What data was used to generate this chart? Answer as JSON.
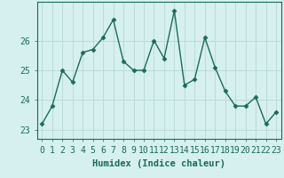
{
  "x": [
    0,
    1,
    2,
    3,
    4,
    5,
    6,
    7,
    8,
    9,
    10,
    11,
    12,
    13,
    14,
    15,
    16,
    17,
    18,
    19,
    20,
    21,
    22,
    23
  ],
  "y": [
    23.2,
    23.8,
    25.0,
    24.6,
    25.6,
    25.7,
    26.1,
    26.7,
    25.3,
    25.0,
    25.0,
    26.0,
    25.4,
    27.0,
    24.5,
    24.7,
    26.1,
    25.1,
    24.3,
    23.8,
    23.8,
    24.1,
    23.2,
    23.6
  ],
  "line_color": "#1a6b5a",
  "marker": "D",
  "markersize": 2.5,
  "bg_color": "#d6f0ef",
  "grid_color": "#b8d8d8",
  "xlabel": "Humidex (Indice chaleur)",
  "ylabel": "",
  "ylim": [
    22.7,
    27.3
  ],
  "yticks": [
    23,
    24,
    25,
    26
  ],
  "xlim": [
    -0.5,
    23.5
  ],
  "title": "",
  "xlabel_fontsize": 7.5,
  "tick_fontsize": 7,
  "linewidth": 1.0
}
